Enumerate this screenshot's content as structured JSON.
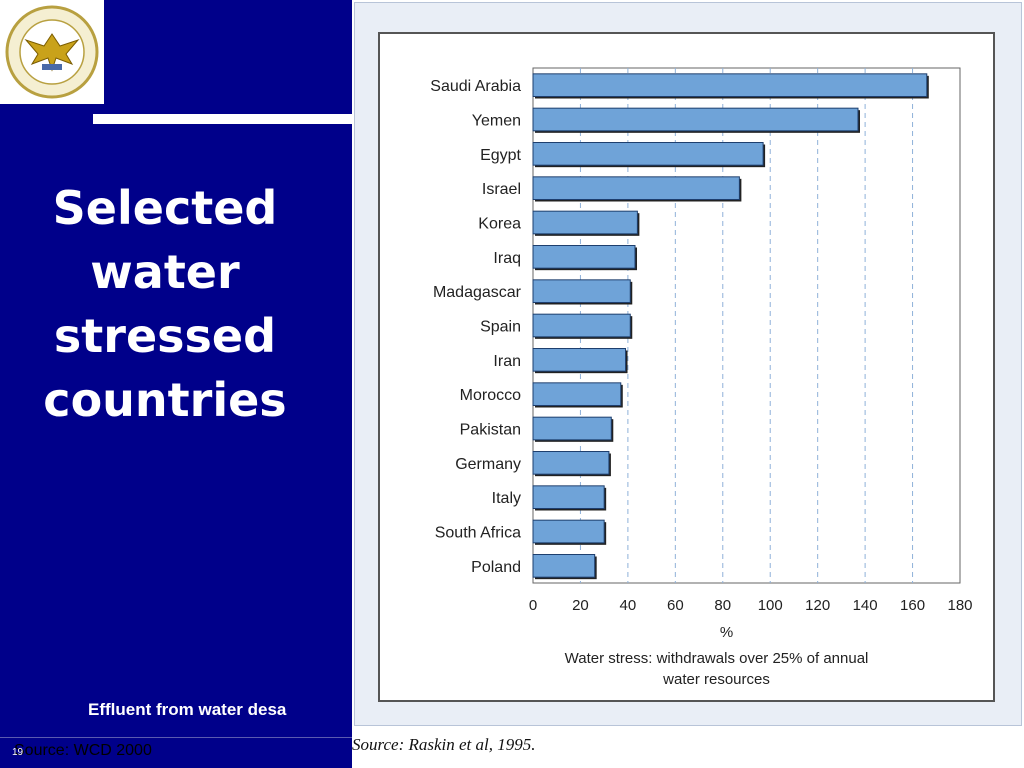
{
  "slide": {
    "title_lines": [
      "Selected",
      "water",
      "stressed",
      "countries"
    ],
    "effluent_text": "Effluent from water desa",
    "source_left": "Source: WCD 2000",
    "slide_number": "19",
    "source_right": "Source: Raskin et al, 1995."
  },
  "chart_data": {
    "type": "bar",
    "orientation": "horizontal",
    "categories": [
      "Saudi Arabia",
      "Yemen",
      "Egypt",
      "Israel",
      "Korea",
      "Iraq",
      "Madagascar",
      "Spain",
      "Iran",
      "Morocco",
      "Pakistan",
      "Germany",
      "Italy",
      "South Africa",
      "Poland"
    ],
    "values": [
      166,
      137,
      97,
      87,
      44,
      43,
      41,
      41,
      39,
      37,
      33,
      32,
      30,
      30,
      26
    ],
    "xlabel": "%",
    "caption_line1": "Water stress: withdrawals over 25% of annual",
    "caption_line2": "water resources",
    "xlim": [
      0,
      180
    ],
    "xticks": [
      0,
      20,
      40,
      60,
      80,
      100,
      120,
      140,
      160,
      180
    ],
    "grid": "vertical dashed",
    "bar_color": "#6fa3d8",
    "bar_shadow_color": "#222222"
  }
}
